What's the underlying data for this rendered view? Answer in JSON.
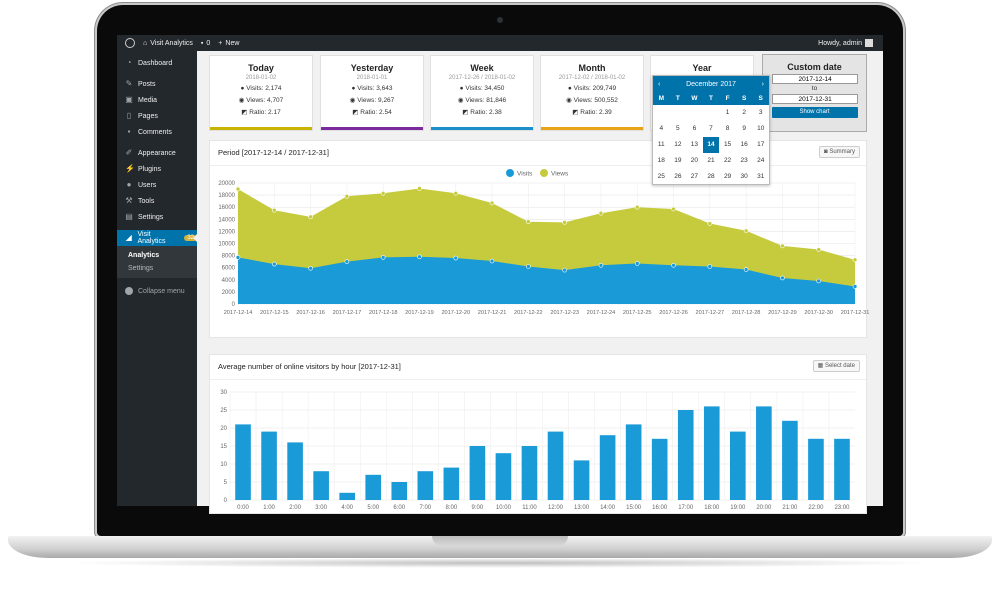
{
  "adminbar": {
    "site_name": "Visit Analytics",
    "comments_count": "0",
    "new_label": "New",
    "greeting": "Howdy, admin"
  },
  "sidebar": {
    "items": [
      {
        "label": "Dashboard",
        "icon": "dashboard-icon"
      },
      {
        "label": "Posts",
        "icon": "pin-icon"
      },
      {
        "label": "Media",
        "icon": "media-icon"
      },
      {
        "label": "Pages",
        "icon": "page-icon"
      },
      {
        "label": "Comments",
        "icon": "comment-icon"
      },
      {
        "label": "Appearance",
        "icon": "brush-icon"
      },
      {
        "label": "Plugins",
        "icon": "plug-icon"
      },
      {
        "label": "Users",
        "icon": "user-icon"
      },
      {
        "label": "Tools",
        "icon": "wrench-icon"
      },
      {
        "label": "Settings",
        "icon": "settings-icon"
      }
    ],
    "active": {
      "label": "Visit Analytics",
      "badge": "32",
      "icon": "chart-icon"
    },
    "submenu": [
      "Analytics",
      "Settings"
    ],
    "collapse_label": "Collapse menu"
  },
  "stats": [
    {
      "title": "Today",
      "date": "2018-01-02",
      "visits": "Visits: 2,174",
      "views": "Views: 4,707",
      "ratio": "Ratio: 2.17",
      "color": "#c8b400"
    },
    {
      "title": "Yesterday",
      "date": "2018-01-01",
      "visits": "Visits: 3,643",
      "views": "Views: 9,267",
      "ratio": "Ratio: 2.54",
      "color": "#7a2a9c"
    },
    {
      "title": "Week",
      "date": "2017-12-26 / 2018-01-02",
      "visits": "Visits: 34,450",
      "views": "Views: 81,846",
      "ratio": "Ratio: 2.38",
      "color": "#1a8fc9"
    },
    {
      "title": "Month",
      "date": "2017-12-02 / 2018-01-02",
      "visits": "Visits: 209,749",
      "views": "Views: 500,552",
      "ratio": "Ratio: 2.39",
      "color": "#e8a317"
    },
    {
      "title": "Year"
    }
  ],
  "custom_date": {
    "title": "Custom date",
    "from": "2017-12-14",
    "to_label": "to",
    "to": "2017-12-31",
    "button": "Show chart"
  },
  "calendar": {
    "month": "December 2017",
    "days_header": [
      "M",
      "T",
      "W",
      "T",
      "F",
      "S",
      "S"
    ],
    "weeks": [
      [
        "",
        "",
        "",
        "",
        "1",
        "2",
        "3"
      ],
      [
        "4",
        "5",
        "6",
        "7",
        "8",
        "9",
        "10"
      ],
      [
        "11",
        "12",
        "13",
        "14",
        "15",
        "16",
        "17"
      ],
      [
        "18",
        "19",
        "20",
        "21",
        "22",
        "23",
        "24"
      ],
      [
        "25",
        "26",
        "27",
        "28",
        "29",
        "30",
        "31"
      ]
    ],
    "selected": "14"
  },
  "panels": {
    "period_title": "Period [2017-12-14 / 2017-12-31]",
    "summary_button": "Summary",
    "hourly_title": "Average number of online visitors by hour [2017-12-31]",
    "select_date_button": "Select date"
  },
  "chart_data": [
    {
      "type": "area",
      "x": [
        "2017-12-14",
        "2017-12-15",
        "2017-12-16",
        "2017-12-17",
        "2017-12-18",
        "2017-12-19",
        "2017-12-20",
        "2017-12-21",
        "2017-12-22",
        "2017-12-23",
        "2017-12-24",
        "2017-12-25",
        "2017-12-26",
        "2017-12-27",
        "2017-12-28",
        "2017-12-29",
        "2017-12-30",
        "2017-12-31"
      ],
      "series": [
        {
          "name": "Visits",
          "color": "#1a9bd7",
          "values": [
            7700,
            6600,
            5900,
            7000,
            7700,
            7800,
            7600,
            7100,
            6200,
            5600,
            6400,
            6700,
            6400,
            6200,
            5700,
            4300,
            3800,
            2900
          ]
        },
        {
          "name": "Views",
          "color": "#c6cb3e",
          "values": [
            19000,
            15500,
            14400,
            17800,
            18300,
            19100,
            18300,
            16700,
            13600,
            13500,
            15000,
            16000,
            15700,
            13300,
            12100,
            9600,
            9000,
            7300
          ]
        }
      ],
      "ylim": [
        0,
        20000
      ],
      "yticks": [
        "0",
        "2000",
        "4000",
        "6000",
        "8000",
        "10000",
        "12000",
        "14000",
        "16000",
        "18000",
        "20000"
      ],
      "grid": true,
      "legend": "top-center"
    },
    {
      "type": "bar",
      "categories": [
        "0:00",
        "1:00",
        "2:00",
        "3:00",
        "4:00",
        "5:00",
        "6:00",
        "7:00",
        "8:00",
        "9:00",
        "10:00",
        "11:00",
        "12:00",
        "13:00",
        "14:00",
        "15:00",
        "16:00",
        "17:00",
        "18:00",
        "19:00",
        "20:00",
        "21:00",
        "22:00",
        "23:00"
      ],
      "values": [
        21,
        19,
        16,
        8,
        2,
        7,
        5,
        8,
        9,
        15,
        13,
        15,
        19,
        11,
        18,
        21,
        17,
        25,
        26,
        19,
        26,
        22,
        17,
        17
      ],
      "color": "#1a9bd7",
      "ylim": [
        0,
        30
      ],
      "yticks": [
        "0",
        "5",
        "10",
        "15",
        "20",
        "25",
        "30"
      ],
      "grid": true
    }
  ]
}
